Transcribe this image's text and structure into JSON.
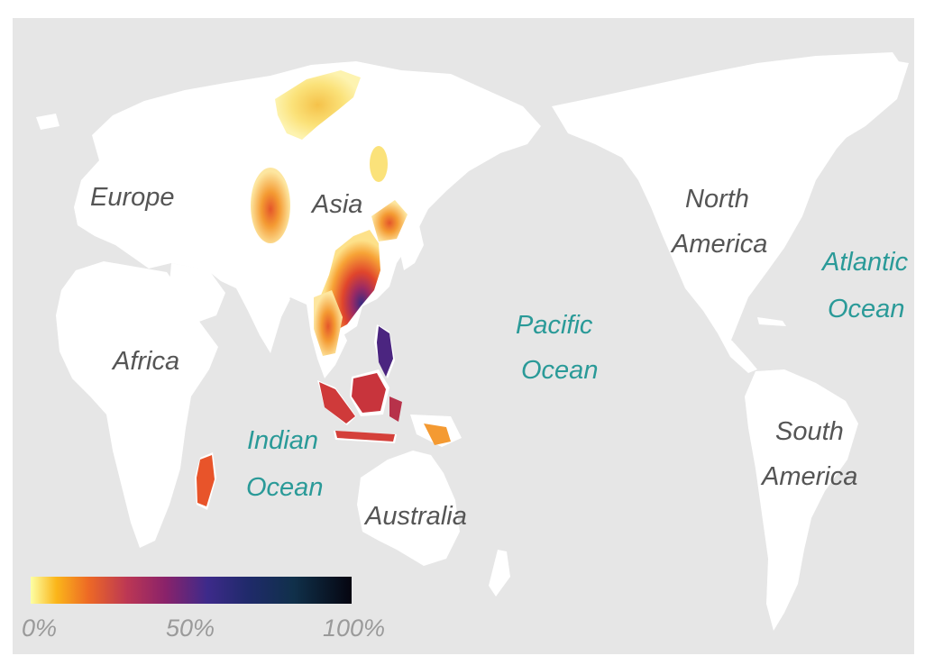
{
  "map": {
    "colors": {
      "background": "#e6e6e6",
      "land": "#ffffff",
      "ocean_label": "#2a9a98",
      "continent_label": "#555555",
      "scale_label": "#9a9a9a"
    },
    "continents": {
      "europe": "Europe",
      "asia": "Asia",
      "africa": "Africa",
      "north_america": [
        "North",
        "America"
      ],
      "south_america": [
        "South",
        "America"
      ],
      "australia": "Australia"
    },
    "oceans": {
      "pacific": [
        "Pacific",
        "Ocean"
      ],
      "atlantic": [
        "Atlantic",
        "Ocean"
      ],
      "indian": [
        "Indian",
        "Ocean"
      ]
    },
    "legend": {
      "ticks": [
        "0%",
        "50%",
        "100%"
      ],
      "range_percent": [
        0,
        100
      ],
      "colormap": "inferno (reversed)"
    }
  }
}
